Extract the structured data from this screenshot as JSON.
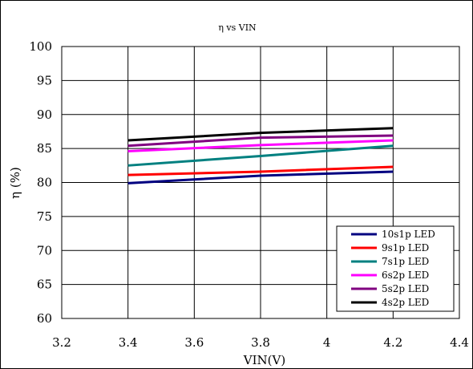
{
  "chart_data": {
    "type": "line",
    "title": "η vs VIN",
    "xlabel": "VIN(V)",
    "ylabel": "η (%)",
    "xlim": [
      3.2,
      4.4
    ],
    "ylim": [
      60,
      100
    ],
    "x_ticks": [
      "3.2",
      "3.4",
      "3.6",
      "3.8",
      "4",
      "4.2",
      "4.4"
    ],
    "y_ticks": [
      "60",
      "65",
      "70",
      "75",
      "80",
      "85",
      "90",
      "95",
      "100"
    ],
    "x_tick_values": [
      3.2,
      3.4,
      3.6,
      3.8,
      4.0,
      4.2,
      4.4
    ],
    "y_tick_values": [
      60,
      65,
      70,
      75,
      80,
      85,
      90,
      95,
      100
    ],
    "grid": "vertical and horizontal major gridlines",
    "legend_position": "bottom-right",
    "x": [
      3.4,
      3.8,
      4.2
    ],
    "series": [
      {
        "name": "10s1p LED",
        "color": "#000080",
        "values": [
          79.9,
          81.0,
          81.6
        ]
      },
      {
        "name": "9s1p LED",
        "color": "#ff0000",
        "values": [
          81.1,
          81.6,
          82.3
        ]
      },
      {
        "name": "7s1p LED",
        "color": "#008080",
        "values": [
          82.5,
          83.9,
          85.4
        ]
      },
      {
        "name": "6s2p LED",
        "color": "#ff00ff",
        "values": [
          84.6,
          85.5,
          86.2
        ]
      },
      {
        "name": "5s2p LED",
        "color": "#800080",
        "values": [
          85.4,
          86.6,
          86.9
        ]
      },
      {
        "name": "4s2p LED",
        "color": "#000000",
        "values": [
          86.2,
          87.3,
          88.0
        ]
      }
    ]
  }
}
